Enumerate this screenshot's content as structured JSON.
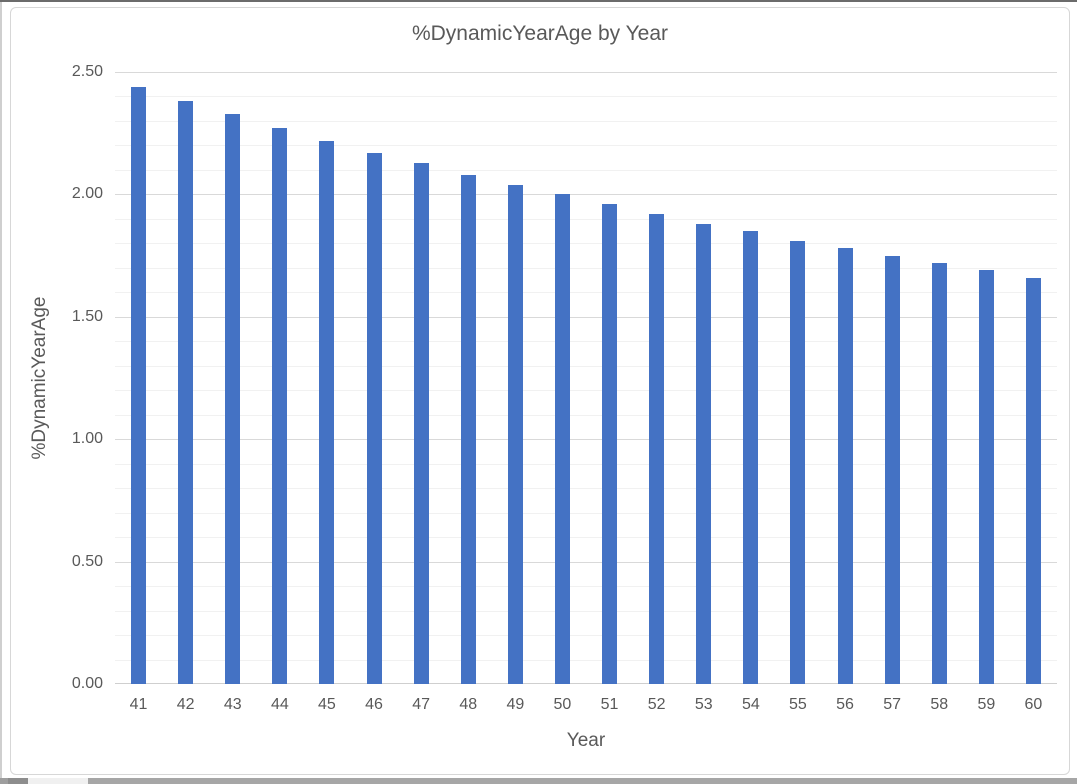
{
  "chart_data": {
    "type": "bar",
    "title": "%DynamicYearAge by Year",
    "xlabel": "Year",
    "ylabel": "%DynamicYearAge",
    "categories": [
      "41",
      "42",
      "43",
      "44",
      "45",
      "46",
      "47",
      "48",
      "49",
      "50",
      "51",
      "52",
      "53",
      "54",
      "55",
      "56",
      "57",
      "58",
      "59",
      "60"
    ],
    "values": [
      2.44,
      2.38,
      2.33,
      2.27,
      2.22,
      2.17,
      2.13,
      2.08,
      2.04,
      2.0,
      1.96,
      1.92,
      1.88,
      1.85,
      1.81,
      1.78,
      1.75,
      1.72,
      1.69,
      1.66
    ],
    "ylim": [
      0,
      2.5
    ],
    "y_major_unit": 0.5,
    "y_minor_unit": 0.1,
    "y_tick_labels": [
      "0.00",
      "0.50",
      "1.00",
      "1.50",
      "2.00",
      "2.50"
    ],
    "grid": "major and minor horizontal gridlines",
    "legend": "none",
    "bar_color": "#4472C4",
    "text_color": "#595959",
    "major_gridline_color": "#d9d9d9",
    "minor_gridline_color": "#f1f1f1",
    "axis_line_color": "#cfcfcf"
  }
}
